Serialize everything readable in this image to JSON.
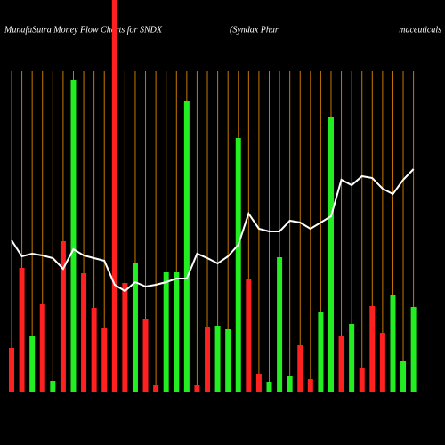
{
  "chart_data": {
    "type": "bar",
    "title": "MunafaSutra  Money Flow  Charts for SNDX",
    "subtitle": "(Syndax Phar",
    "subtitle_end": "maceuticals",
    "values": [
      49,
      139,
      63,
      98,
      12,
      169,
      350,
      133,
      94,
      72,
      440,
      122,
      144,
      82,
      7,
      134,
      134,
      326,
      7,
      73,
      74,
      70,
      285,
      126,
      20,
      11,
      151,
      17,
      52,
      14,
      90,
      308,
      62,
      76,
      27,
      96,
      66,
      108,
      34,
      95
    ],
    "colors": [
      "#ff2020",
      "#ff2020",
      "#22ee22",
      "#ff2020",
      "#22ee22",
      "#ff2020",
      "#22ee22",
      "#ff2020",
      "#ff2020",
      "#ff2020",
      "#ff2020",
      "#ff2020",
      "#22ee22",
      "#ff2020",
      "#ff2020",
      "#22ee22",
      "#22ee22",
      "#22ee22",
      "#ff2020",
      "#ff2020",
      "#22ee22",
      "#22ee22",
      "#22ee22",
      "#ff2020",
      "#ff2020",
      "#22ee22",
      "#22ee22",
      "#22ee22",
      "#ff2020",
      "#ff2020",
      "#22ee22",
      "#22ee22",
      "#ff2020",
      "#22ee22",
      "#ff2020",
      "#ff2020",
      "#ff2020",
      "#22ee22",
      "#22ee22",
      "#22ee22"
    ],
    "line_values": [
      170,
      152,
      155,
      153,
      150,
      138,
      160,
      153,
      150,
      147,
      120,
      113,
      123,
      118,
      120,
      123,
      127,
      127,
      155,
      150,
      144,
      152,
      165,
      200,
      183,
      180,
      180,
      192,
      190,
      183,
      190,
      197,
      238,
      232,
      242,
      240,
      228,
      222,
      238,
      250
    ],
    "line_color": "#ffffff",
    "grid_color": "#c87800",
    "ylim": [
      0,
      440
    ]
  }
}
